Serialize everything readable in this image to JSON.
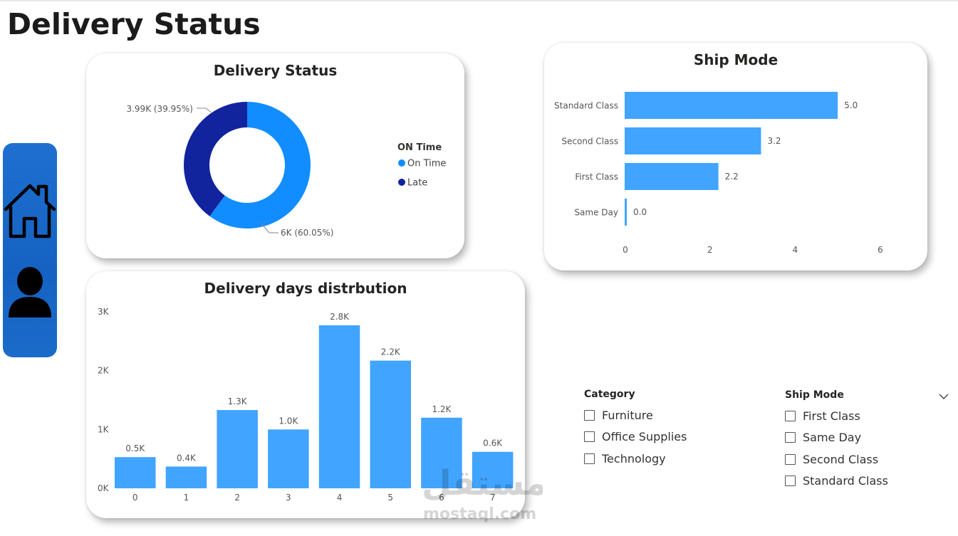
{
  "page": {
    "title": "Delivery Status"
  },
  "nav": {
    "items": [
      {
        "icon": "home-icon"
      },
      {
        "icon": "user-icon"
      }
    ]
  },
  "colors": {
    "on_time": "#118dff",
    "late": "#12239e",
    "bar": "#41a4ff",
    "nav": "#1565c8"
  },
  "donut": {
    "chart_data": {
      "type": "pie",
      "title": "Delivery Status",
      "legend_title": "ON Time",
      "legend_position": "right",
      "slices": [
        {
          "name": "On Time",
          "value": 6000,
          "label": "6K (60.05%)",
          "percent": 60.05
        },
        {
          "name": "Late",
          "value": 3990,
          "label": "3.99K (39.95%)",
          "percent": 39.95
        }
      ]
    }
  },
  "ship_mode_chart": {
    "chart_data": {
      "type": "bar",
      "orientation": "horizontal",
      "title": "Ship Mode",
      "categories": [
        "Standard Class",
        "Second Class",
        "First Class",
        "Same Day"
      ],
      "values": [
        5.0,
        3.2,
        2.2,
        0.0
      ],
      "value_labels": [
        "5.0",
        "3.2",
        "2.2",
        "0.0"
      ],
      "xlim": [
        0,
        6
      ],
      "xticks": [
        "0",
        "2",
        "4",
        "6"
      ],
      "grid": false
    }
  },
  "days_chart": {
    "chart_data": {
      "type": "bar",
      "title": "Delivery days distrbution",
      "categories": [
        "0",
        "1",
        "2",
        "3",
        "4",
        "5",
        "6",
        "7"
      ],
      "values": [
        530,
        370,
        1330,
        1000,
        2770,
        2170,
        1200,
        620
      ],
      "value_labels": [
        "0.5K",
        "0.4K",
        "1.3K",
        "1.0K",
        "2.8K",
        "2.2K",
        "1.2K",
        "0.6K"
      ],
      "ylim": [
        0,
        3000
      ],
      "yticks": [
        "0K",
        "1K",
        "2K",
        "3K"
      ],
      "grid": false
    }
  },
  "category_slicer": {
    "title": "Category",
    "options": [
      "Furniture",
      "Office Supplies",
      "Technology"
    ]
  },
  "shipmode_slicer": {
    "title": "Ship Mode",
    "options": [
      "First Class",
      "Same Day",
      "Second Class",
      "Standard Class"
    ]
  },
  "watermark": {
    "text": "mostaql.com"
  }
}
